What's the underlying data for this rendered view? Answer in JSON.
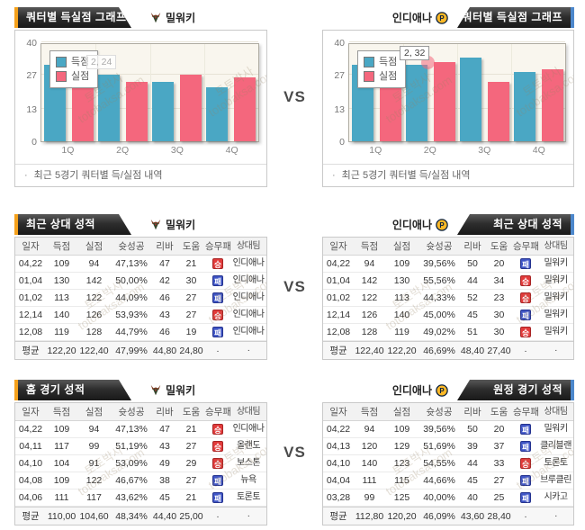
{
  "vs_label": "VS",
  "watermark": {
    "line1": "토토박사",
    "line2": "totobaksa.com"
  },
  "teams": {
    "left": {
      "name": "밀워키",
      "icon": "bucks-logo"
    },
    "right": {
      "name": "인디애나",
      "icon": "pacers-logo"
    }
  },
  "chart_section": {
    "left": {
      "tab_title": "쿼터별 득실점 그래프",
      "note": "최근 5경기 쿼터별 득/실점 내역"
    },
    "right": {
      "tab_title": "쿼터별 득실점 그래프",
      "note": "최근 5경기 쿼터별 득/실점 내역"
    }
  },
  "chart_data": [
    {
      "type": "bar",
      "title": "쿼터별 득실점 그래프 (밀워키)",
      "categories": [
        "1Q",
        "2Q",
        "3Q",
        "4Q"
      ],
      "series": [
        {
          "name": "득점",
          "color": "#4aa7c4",
          "values": [
            31,
            27,
            24,
            22
          ]
        },
        {
          "name": "실점",
          "color": "#f4677d",
          "values": [
            25,
            24,
            27,
            26
          ]
        }
      ],
      "ylim": [
        0,
        40
      ],
      "yticks": [
        0,
        13,
        27,
        40
      ],
      "legend_position": "top-left",
      "grid": true,
      "tooltip": {
        "text": "2, 24",
        "style": "faded",
        "marker": false
      }
    },
    {
      "type": "bar",
      "title": "쿼터별 득실점 그래프 (인디애나)",
      "categories": [
        "1Q",
        "2Q",
        "3Q",
        "4Q"
      ],
      "series": [
        {
          "name": "득점",
          "color": "#4aa7c4",
          "values": [
            31,
            31,
            34,
            28
          ]
        },
        {
          "name": "실점",
          "color": "#f4677d",
          "values": [
            31,
            32,
            24,
            29
          ]
        }
      ],
      "ylim": [
        0,
        40
      ],
      "yticks": [
        0,
        13,
        27,
        40
      ],
      "legend_position": "top-left",
      "grid": true,
      "tooltip": {
        "text": "2, 32",
        "style": "solid",
        "marker": true
      }
    }
  ],
  "table_headers": [
    "일자",
    "득점",
    "실점",
    "슛성공",
    "리바",
    "도움",
    "승무패",
    "상대팀"
  ],
  "tables": {
    "h2h_left": {
      "tab_title": "최근 상대 성적",
      "rows": [
        [
          "04,22",
          "109",
          "94",
          "47,13%",
          "47",
          "21",
          "승",
          "인디애나"
        ],
        [
          "01,04",
          "130",
          "142",
          "50,00%",
          "42",
          "30",
          "패",
          "인디애나"
        ],
        [
          "01,02",
          "113",
          "122",
          "44,09%",
          "46",
          "27",
          "패",
          "인디애나"
        ],
        [
          "12,14",
          "140",
          "126",
          "53,93%",
          "43",
          "27",
          "승",
          "인디애나"
        ],
        [
          "12,08",
          "119",
          "128",
          "44,79%",
          "46",
          "19",
          "패",
          "인디애나"
        ]
      ],
      "avg": [
        "평균",
        "122,20",
        "122,40",
        "47,99%",
        "44,80",
        "24,80",
        "·",
        "·"
      ]
    },
    "h2h_right": {
      "tab_title": "최근 상대 성적",
      "rows": [
        [
          "04,22",
          "94",
          "109",
          "39,56%",
          "50",
          "20",
          "패",
          "밀워키"
        ],
        [
          "01,04",
          "142",
          "130",
          "55,56%",
          "44",
          "34",
          "승",
          "밀워키"
        ],
        [
          "01,02",
          "122",
          "113",
          "44,33%",
          "52",
          "23",
          "승",
          "밀워키"
        ],
        [
          "12,14",
          "126",
          "140",
          "45,00%",
          "45",
          "30",
          "패",
          "밀워키"
        ],
        [
          "12,08",
          "128",
          "119",
          "49,02%",
          "51",
          "30",
          "승",
          "밀워키"
        ]
      ],
      "avg": [
        "평균",
        "122,40",
        "122,20",
        "46,69%",
        "48,40",
        "27,40",
        "·",
        "·"
      ]
    },
    "home_left": {
      "tab_title": "홈 경기 성적",
      "rows": [
        [
          "04,22",
          "109",
          "94",
          "47,13%",
          "47",
          "21",
          "승",
          "인디애나"
        ],
        [
          "04,11",
          "117",
          "99",
          "51,19%",
          "43",
          "27",
          "승",
          "올랜도"
        ],
        [
          "04,10",
          "104",
          "91",
          "53,09%",
          "49",
          "29",
          "승",
          "보스톤"
        ],
        [
          "04,08",
          "109",
          "122",
          "46,67%",
          "38",
          "27",
          "패",
          "뉴욕"
        ],
        [
          "04,06",
          "111",
          "117",
          "43,62%",
          "45",
          "21",
          "패",
          "토론토"
        ]
      ],
      "avg": [
        "평균",
        "110,00",
        "104,60",
        "48,34%",
        "44,40",
        "25,00",
        "·",
        "·"
      ]
    },
    "away_right": {
      "tab_title": "원정 경기 성적",
      "rows": [
        [
          "04,22",
          "94",
          "109",
          "39,56%",
          "50",
          "20",
          "패",
          "밀워키"
        ],
        [
          "04,13",
          "120",
          "129",
          "51,69%",
          "39",
          "37",
          "패",
          "클리블랜"
        ],
        [
          "04,10",
          "140",
          "123",
          "54,55%",
          "44",
          "33",
          "승",
          "토론토"
        ],
        [
          "04,04",
          "111",
          "115",
          "44,66%",
          "45",
          "27",
          "패",
          "브루클린"
        ],
        [
          "03,28",
          "99",
          "125",
          "40,00%",
          "40",
          "25",
          "패",
          "시카고"
        ]
      ],
      "avg": [
        "평균",
        "112,80",
        "120,20",
        "46,09%",
        "43,60",
        "28,40",
        "·",
        "·"
      ]
    }
  }
}
